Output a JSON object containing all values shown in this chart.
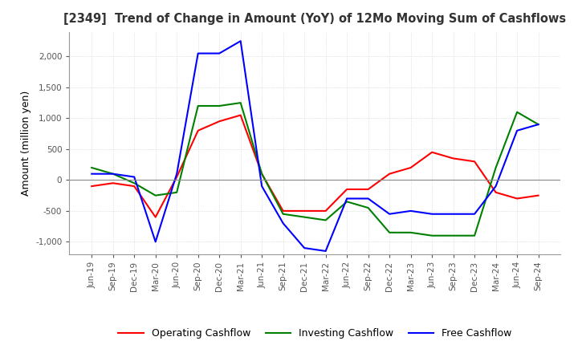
{
  "title": "[2349]  Trend of Change in Amount (YoY) of 12Mo Moving Sum of Cashflows",
  "ylabel": "Amount (million yen)",
  "ylim": [
    -1200,
    2400
  ],
  "yticks": [
    -1000,
    -500,
    0,
    500,
    1000,
    1500,
    2000
  ],
  "x_labels": [
    "Jun-19",
    "Sep-19",
    "Dec-19",
    "Mar-20",
    "Jun-20",
    "Sep-20",
    "Dec-20",
    "Mar-21",
    "Jun-21",
    "Sep-21",
    "Dec-21",
    "Mar-22",
    "Jun-22",
    "Sep-22",
    "Dec-22",
    "Mar-23",
    "Jun-23",
    "Sep-23",
    "Dec-23",
    "Mar-24",
    "Jun-24",
    "Sep-24"
  ],
  "operating_cashflow": [
    -100,
    -50,
    -100,
    -600,
    50,
    800,
    950,
    1050,
    100,
    -500,
    -500,
    -500,
    -150,
    -150,
    100,
    200,
    450,
    350,
    300,
    -200,
    -300,
    -250
  ],
  "investing_cashflow": [
    200,
    100,
    -50,
    -250,
    -200,
    1200,
    1200,
    1250,
    100,
    -550,
    -600,
    -650,
    -350,
    -450,
    -850,
    -850,
    -900,
    -900,
    -900,
    200,
    1100,
    900
  ],
  "free_cashflow": [
    100,
    100,
    50,
    -1000,
    100,
    2050,
    2050,
    2250,
    -100,
    -700,
    -1100,
    -1150,
    -300,
    -300,
    -550,
    -500,
    -550,
    -550,
    -550,
    -100,
    800,
    900
  ],
  "operating_color": "#ff0000",
  "investing_color": "#008000",
  "free_color": "#0000ff",
  "bg_color": "#ffffff",
  "grid_color": "#cccccc",
  "title_color": "#333333",
  "zero_line_color": "#888888"
}
